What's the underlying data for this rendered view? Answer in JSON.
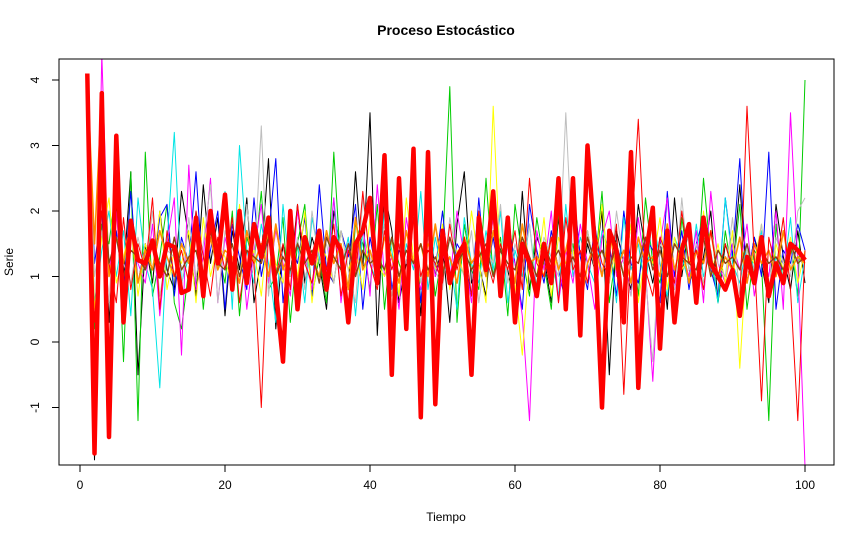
{
  "chart_data": {
    "type": "line",
    "title": "Proceso Estocástico",
    "xlabel": "Tiempo",
    "ylabel": "Serie",
    "xlim": [
      0,
      100
    ],
    "ylim": [
      -1.9,
      4.3
    ],
    "x_ticks": [
      "0",
      "20",
      "40",
      "60",
      "80",
      "100"
    ],
    "y_ticks": [
      "-1",
      "0",
      "1",
      "2",
      "3",
      "4"
    ],
    "grid": false,
    "legend": "none",
    "series": [
      {
        "color": "#000000",
        "width": 1,
        "values": [
          4.1,
          -1.8,
          3.1,
          0.3,
          2.1,
          1.0,
          2.6,
          -0.5,
          1.5,
          0.9,
          2.0,
          1.1,
          0.8,
          2.3,
          1.6,
          0.7,
          2.4,
          1.2,
          1.9,
          0.4,
          1.7,
          1.1,
          2.2,
          0.6,
          1.3,
          2.8,
          0.2,
          1.5,
          1.0,
          2.1,
          0.9,
          1.6,
          1.2,
          0.5,
          2.0,
          1.4,
          0.8,
          2.6,
          1.1,
          3.5,
          0.1,
          2.3,
          1.7,
          0.6,
          1.2,
          1.9,
          0.4,
          2.2,
          1.0,
          1.5,
          0.3,
          1.8,
          2.6,
          0.9,
          1.2,
          0.7,
          2.0,
          1.4,
          1.1,
          0.5,
          2.3,
          0.8,
          1.6,
          1.3,
          0.6,
          1.9,
          1.0,
          2.4,
          0.7,
          1.5,
          1.1,
          2.0,
          -0.5,
          1.7,
          1.2,
          0.8,
          2.1,
          1.4,
          0.9,
          1.6,
          0.5,
          2.2,
          1.0,
          1.8,
          0.7,
          1.3,
          2.0,
          0.6,
          1.5,
          1.1,
          2.4,
          0.9,
          1.6,
          1.2,
          0.6,
          2.1,
          1.3,
          0.8,
          1.7,
          0.9
        ]
      },
      {
        "color": "#00cc00",
        "width": 1,
        "values": [
          4.0,
          0.2,
          1.8,
          1.5,
          2.4,
          -0.3,
          2.6,
          -1.2,
          2.9,
          0.7,
          1.3,
          2.1,
          0.6,
          0.2,
          1.1,
          1.9,
          0.5,
          1.7,
          1.4,
          0.9,
          2.0,
          0.4,
          1.6,
          1.2,
          2.3,
          0.8,
          1.0,
          1.9,
          0.3,
          1.5,
          2.1,
          0.7,
          1.3,
          0.6,
          2.9,
          1.1,
          0.4,
          1.8,
          1.5,
          0.8,
          2.1,
          0.5,
          1.6,
          1.2,
          0.9,
          2.2,
          0.6,
          1.7,
          0.7,
          1.4,
          3.9,
          0.3,
          1.8,
          1.1,
          0.8,
          2.5,
          1.0,
          1.6,
          0.4,
          2.1,
          1.3,
          0.7,
          1.9,
          1.2,
          0.5,
          2.0,
          0.9,
          1.5,
          0.8,
          1.7,
          1.1,
          2.3,
          0.6,
          1.4,
          1.0,
          1.8,
          0.7,
          2.2,
          1.2,
          0.9,
          1.6,
          0.4,
          1.9,
          1.1,
          0.8,
          2.5,
          1.3,
          0.6,
          1.7,
          1.0,
          2.1,
          0.5,
          1.4,
          1.2,
          -1.2,
          1.8,
          0.9,
          1.5,
          0.7,
          4.0
        ]
      },
      {
        "color": "#0000ff",
        "width": 1,
        "values": [
          4.0,
          1.2,
          2.0,
          -0.4,
          1.7,
          0.8,
          2.3,
          0.9,
          1.5,
          1.1,
          1.9,
          2.1,
          0.7,
          1.6,
          1.2,
          2.6,
          0.9,
          1.4,
          2.0,
          0.5,
          1.8,
          1.3,
          0.8,
          2.2,
          1.0,
          1.6,
          2.8,
          0.6,
          1.5,
          1.2,
          1.9,
          0.7,
          2.4,
          1.1,
          0.9,
          1.7,
          1.3,
          2.1,
          0.5,
          1.6,
          1.0,
          2.3,
          0.8,
          1.4,
          1.2,
          1.9,
          0.6,
          1.7,
          1.1,
          2.0,
          0.9,
          1.5,
          1.3,
          0.7,
          2.2,
          1.0,
          1.6,
          0.8,
          1.9,
          1.2,
          0.5,
          2.1,
          1.4,
          0.9,
          1.7,
          1.1,
          0.6,
          2.4,
          1.3,
          0.8,
          1.8,
          1.0,
          1.5,
          0.7,
          2.0,
          1.2,
          0.9,
          1.6,
          1.4,
          0.6,
          2.3,
          1.0,
          1.7,
          0.8,
          1.5,
          1.9,
          1.1,
          0.7,
          2.2,
          1.3,
          2.8,
          0.9,
          1.6,
          1.0,
          2.9,
          0.5,
          1.4,
          1.2,
          1.8,
          1.4
        ]
      },
      {
        "color": "#00e5e5",
        "width": 1,
        "values": [
          4.0,
          0.6,
          1.4,
          2.0,
          1.0,
          1.7,
          0.4,
          2.2,
          1.2,
          0.8,
          -0.7,
          1.5,
          3.2,
          0.9,
          1.3,
          2.0,
          0.7,
          1.6,
          1.1,
          2.3,
          0.5,
          3.0,
          1.4,
          0.9,
          1.8,
          1.2,
          0.3,
          2.1,
          1.0,
          1.5,
          0.6,
          1.9,
          1.3,
          0.8,
          2.2,
          1.1,
          1.6,
          0.4,
          1.7,
          1.2,
          0.9,
          2.0,
          1.4,
          0.7,
          1.5,
          1.1,
          2.3,
          0.8,
          1.6,
          1.0,
          1.3,
          0.5,
          1.9,
          1.2,
          0.9,
          1.7,
          1.1,
          2.0,
          0.6,
          1.4,
          1.0,
          1.8,
          0.8,
          1.5,
          1.3,
          0.7,
          2.1,
          1.0,
          1.6,
          1.2,
          0.9,
          1.7,
          1.4,
          0.6,
          1.9,
          1.1,
          1.5,
          0.8,
          2.0,
          1.2,
          0.7,
          1.6,
          1.3,
          0.9,
          1.8,
          1.0,
          1.4,
          0.6,
          2.2,
          1.2,
          0.9,
          1.5,
          1.1,
          1.7,
          0.8,
          1.3,
          1.0,
          1.9,
          0.6,
          1.3
        ]
      },
      {
        "color": "#ff00ff",
        "width": 1,
        "values": [
          4.1,
          -1.5,
          4.4,
          1.0,
          2.0,
          0.6,
          1.7,
          1.2,
          0.9,
          1.8,
          0.4,
          1.5,
          2.2,
          -0.2,
          2.7,
          0.8,
          1.3,
          2.5,
          0.6,
          1.6,
          1.1,
          1.9,
          0.5,
          1.4,
          2.1,
          0.9,
          1.7,
          1.2,
          0.7,
          2.0,
          1.3,
          0.8,
          1.6,
          1.0,
          2.2,
          0.6,
          1.5,
          1.1,
          1.8,
          0.7,
          2.4,
          1.0,
          1.3,
          0.5,
          1.9,
          1.2,
          0.8,
          1.7,
          1.0,
          1.4,
          0.9,
          2.0,
          1.3,
          0.6,
          1.6,
          1.1,
          1.9,
          0.7,
          1.5,
          1.2,
          0.4,
          -1.2,
          1.7,
          1.1,
          2.0,
          0.6,
          1.4,
          0.9,
          1.8,
          1.2,
          0.5,
          1.6,
          2.0,
          1.0,
          1.3,
          0.7,
          1.9,
          1.1,
          -0.6,
          1.5,
          2.2,
          0.8,
          1.4,
          1.0,
          1.7,
          0.6,
          2.3,
          1.2,
          0.9,
          1.5,
          1.1,
          1.8,
          0.7,
          1.4,
          1.0,
          2.0,
          0.5,
          3.5,
          1.2,
          -1.9
        ]
      },
      {
        "color": "#ffff00",
        "width": 1,
        "values": [
          4.0,
          0.5,
          1.6,
          2.2,
          0.9,
          1.3,
          1.8,
          0.7,
          1.5,
          1.1,
          2.0,
          0.8,
          1.4,
          1.2,
          1.7,
          0.6,
          1.9,
          1.0,
          1.5,
          1.3,
          0.8,
          2.1,
          1.1,
          1.4,
          0.7,
          1.8,
          1.2,
          0.9,
          1.6,
          1.0,
          2.0,
          0.6,
          1.5,
          1.3,
          0.9,
          1.7,
          1.1,
          1.4,
          0.8,
          1.9,
          1.2,
          1.0,
          1.6,
          0.7,
          2.2,
          1.3,
          0.9,
          1.5,
          1.1,
          1.8,
          0.8,
          1.4,
          1.0,
          2.0,
          1.2,
          0.6,
          3.6,
          1.1,
          1.5,
          0.9,
          -0.2,
          1.3,
          1.0,
          1.9,
          0.7,
          1.6,
          1.2,
          1.4,
          0.8,
          1.7,
          1.1,
          2.1,
          0.9,
          1.5,
          1.0,
          1.8,
          0.6,
          1.4,
          1.2,
          1.9,
          0.8,
          1.6,
          1.1,
          1.3,
          0.7,
          2.0,
          1.0,
          1.5,
          0.9,
          1.7,
          -0.4,
          1.4,
          1.2,
          1.8,
          0.8,
          1.5,
          1.1,
          1.6,
          0.9,
          1.4
        ]
      },
      {
        "color": "#bebebe",
        "width": 1,
        "values": [
          4.0,
          1.0,
          1.7,
          0.6,
          2.3,
          1.2,
          0.9,
          1.6,
          1.1,
          2.0,
          0.7,
          1.4,
          1.3,
          0.8,
          1.9,
          1.0,
          1.5,
          2.4,
          0.6,
          1.7,
          1.2,
          0.9,
          2.1,
          1.1,
          3.3,
          0.7,
          1.8,
          1.3,
          1.0,
          1.6,
          0.8,
          2.0,
          1.2,
          1.5,
          0.9,
          1.7,
          1.1,
          0.6,
          2.2,
          1.3,
          1.0,
          1.8,
          0.7,
          1.5,
          1.2,
          2.0,
          0.9,
          1.6,
          1.1,
          0.8,
          1.9,
          1.3,
          1.0,
          1.7,
          0.6,
          1.4,
          1.2,
          2.1,
          0.9,
          1.5,
          1.1,
          1.8,
          0.7,
          1.6,
          1.3,
          1.0,
          3.5,
          1.2,
          0.8,
          1.7,
          1.1,
          1.4,
          0.9,
          2.0,
          1.2,
          0.7,
          1.6,
          1.0,
          -0.3,
          1.5,
          1.3,
          0.8,
          2.2,
          1.1,
          1.5,
          0.9,
          1.7,
          1.2,
          1.0,
          1.9,
          0.7,
          1.4,
          1.1,
          1.8,
          0.8,
          1.6,
          1.2,
          1.0,
          2.0,
          2.2
        ]
      },
      {
        "color": "#ff8c00",
        "width": 1.6,
        "values": [
          4.1,
          1.5,
          3.8,
          1.0,
          1.6,
          1.2,
          1.8,
          0.9,
          1.4,
          1.1,
          1.7,
          1.3,
          1.0,
          1.5,
          1.2,
          1.9,
          0.8,
          1.6,
          1.1,
          1.4,
          1.3,
          0.9,
          1.7,
          1.2,
          1.5,
          1.0,
          1.8,
          1.1,
          1.4,
          0.9,
          1.6,
          1.3,
          1.0,
          1.7,
          1.2,
          1.5,
          0.8,
          1.9,
          1.1,
          1.4,
          1.0,
          1.6,
          1.3,
          0.9,
          1.7,
          1.2,
          1.5,
          1.0,
          1.8,
          1.1,
          1.3,
          0.9,
          1.6,
          1.2,
          1.4,
          1.0,
          1.7,
          1.1,
          1.5,
          0.9,
          1.8,
          1.2,
          1.3,
          1.0,
          1.6,
          1.1,
          1.4,
          1.9,
          0.5,
          1.2,
          1.5,
          1.0,
          1.7,
          1.1,
          1.4,
          0.9,
          1.6,
          1.2,
          1.3,
          1.0,
          1.8,
          1.1,
          1.5,
          0.9,
          1.4,
          1.2,
          1.7,
          1.0,
          1.3,
          1.1,
          1.6,
          0.9,
          1.5,
          1.2,
          1.4,
          1.0,
          1.7,
          1.1,
          1.3,
          1.2
        ]
      },
      {
        "color": "#ff0000",
        "width": 1,
        "values": [
          4.0,
          0.3,
          2.0,
          1.2,
          0.6,
          1.9,
          0.8,
          1.5,
          1.1,
          2.2,
          0.5,
          1.7,
          1.0,
          1.4,
          0.9,
          2.0,
          1.3,
          0.7,
          1.6,
          1.1,
          1.9,
          0.6,
          1.4,
          1.2,
          -1.0,
          1.7,
          1.0,
          1.5,
          0.8,
          2.1,
          1.2,
          0.9,
          1.6,
          1.1,
          1.8,
          0.7,
          1.4,
          1.0,
          2.3,
          1.2,
          0.8,
          1.7,
          1.1,
          1.5,
          0.6,
          1.9,
          1.0,
          1.4,
          1.2,
          0.9,
          1.8,
          1.1,
          1.6,
          0.7,
          2.0,
          1.3,
          0.9,
          1.5,
          1.1,
          1.7,
          0.8,
          2.5,
          1.2,
          1.0,
          1.6,
          0.6,
          1.9,
          1.1,
          1.4,
          0.9,
          1.7,
          1.2,
          1.0,
          1.8,
          -0.8,
          1.5,
          3.4,
          1.1,
          0.7,
          1.6,
          1.3,
          0.9,
          2.0,
          1.2,
          1.4,
          0.8,
          1.7,
          1.0,
          1.5,
          1.1,
          0.6,
          3.6,
          1.3,
          -0.9,
          1.6,
          1.1,
          1.9,
          0.8,
          -1.2,
          1.4
        ]
      },
      {
        "color": "#8b4513",
        "width": 1.4,
        "values": [
          4.1,
          -1.0,
          2.8,
          1.2,
          1.6,
          1.0,
          1.4,
          1.3,
          1.1,
          1.5,
          1.2,
          1.0,
          1.6,
          1.1,
          1.3,
          1.4,
          0.9,
          1.7,
          1.2,
          1.1,
          1.5,
          1.0,
          1.4,
          1.3,
          1.2,
          1.6,
          1.0,
          1.3,
          1.1,
          1.5,
          1.2,
          1.4,
          0.9,
          1.6,
          1.3,
          1.1,
          1.5,
          1.0,
          1.4,
          1.2,
          1.3,
          1.1,
          1.6,
          1.0,
          1.4,
          1.2,
          1.5,
          1.1,
          1.3,
          1.0,
          1.6,
          1.2,
          1.4,
          1.1,
          1.3,
          1.5,
          1.0,
          1.4,
          1.2,
          1.1,
          1.6,
          1.3,
          1.0,
          1.5,
          1.2,
          1.4,
          1.1,
          1.3,
          1.0,
          1.6,
          1.2,
          1.4,
          1.1,
          1.5,
          1.0,
          1.3,
          1.2,
          1.6,
          1.1,
          1.4,
          1.0,
          1.5,
          1.3,
          1.2,
          1.1,
          1.6,
          1.0,
          1.4,
          1.2,
          1.3,
          1.1,
          1.5,
          1.0,
          1.4,
          1.2,
          1.3,
          1.1,
          1.5,
          1.2,
          1.3
        ]
      },
      {
        "color": "#ff0000",
        "width": 4.5,
        "values": [
          4.1,
          -1.7,
          3.8,
          -1.45,
          3.15,
          0.3,
          1.85,
          1.25,
          1.2,
          1.55,
          1.0,
          1.5,
          1.45,
          0.75,
          0.8,
          1.9,
          0.7,
          2.0,
          1.2,
          2.25,
          0.8,
          2.0,
          0.9,
          1.8,
          1.3,
          1.9,
          0.8,
          -0.3,
          2.0,
          0.5,
          1.6,
          1.2,
          1.7,
          0.8,
          1.6,
          1.4,
          0.3,
          1.5,
          1.7,
          2.2,
          0.9,
          2.85,
          -0.5,
          2.5,
          0.2,
          2.95,
          -1.15,
          2.9,
          -0.95,
          1.7,
          0.9,
          1.3,
          1.5,
          -0.5,
          1.9,
          1.1,
          2.3,
          0.7,
          1.9,
          0.3,
          1.5,
          1.2,
          0.7,
          1.5,
          0.9,
          2.5,
          0.5,
          2.5,
          0.1,
          3.0,
          1.5,
          -1.0,
          1.7,
          1.4,
          0.3,
          2.9,
          -0.7,
          1.3,
          2.05,
          -0.1,
          1.7,
          0.3,
          1.4,
          1.8,
          0.6,
          1.9,
          1.2,
          1.0,
          0.8,
          1.1,
          0.4,
          1.3,
          0.9,
          1.6,
          0.7,
          1.2,
          0.9,
          1.5,
          1.4,
          1.25
        ]
      }
    ]
  }
}
